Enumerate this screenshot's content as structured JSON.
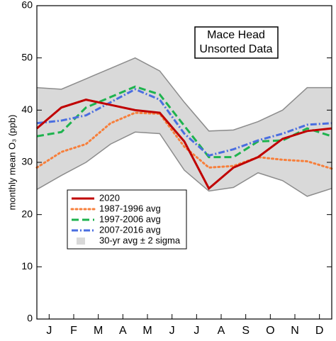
{
  "chart_data": {
    "type": "line",
    "ylabel": "monthly mean O₃ (ppb)",
    "annotation": [
      "Mace Head",
      "Unsorted Data"
    ],
    "x": [
      0,
      1,
      2,
      3,
      4,
      5,
      6,
      7,
      8,
      9,
      10,
      11,
      12
    ],
    "xlim": [
      0,
      12
    ],
    "xticks": [
      {
        "value": 0.5,
        "label": "J"
      },
      {
        "value": 1.5,
        "label": "F"
      },
      {
        "value": 2.5,
        "label": "M"
      },
      {
        "value": 3.5,
        "label": "A"
      },
      {
        "value": 4.5,
        "label": "M"
      },
      {
        "value": 5.5,
        "label": "J"
      },
      {
        "value": 6.5,
        "label": "J"
      },
      {
        "value": 7.5,
        "label": "A"
      },
      {
        "value": 8.5,
        "label": "S"
      },
      {
        "value": 9.5,
        "label": "O"
      },
      {
        "value": 10.5,
        "label": "N"
      },
      {
        "value": 11.5,
        "label": "D"
      }
    ],
    "ylim": [
      0,
      60
    ],
    "yticks": [
      0,
      10,
      20,
      30,
      40,
      50,
      60
    ],
    "band": {
      "name": "30-yr avg ± 2 sigma",
      "color": "#d9d9d9",
      "edge": "#8c8c8c",
      "upper": [
        44.3,
        44,
        46,
        48,
        50,
        47.5,
        41.5,
        36,
        36.2,
        37.8,
        40,
        44.3,
        44.3
      ],
      "lower": [
        24.8,
        27.5,
        30,
        33.5,
        35.8,
        35.5,
        28.5,
        24.5,
        25.2,
        28,
        26.5,
        23.5,
        25
      ]
    },
    "series": [
      {
        "name": "2020",
        "color": "#c00000",
        "dash": "solid",
        "values": [
          36.5,
          40.5,
          42,
          41,
          40,
          39.5,
          34,
          25,
          29,
          31,
          34.5,
          36,
          36.5
        ]
      },
      {
        "name": "1987-1996 avg",
        "color": "#f77f3b",
        "dash": "dot",
        "values": [
          29,
          32,
          33.5,
          37.5,
          39.5,
          39.3,
          33,
          29,
          29.3,
          31,
          30.5,
          30.2,
          28.8
        ]
      },
      {
        "name": "1997-2006 avg",
        "color": "#1eb34e",
        "dash": "dash",
        "values": [
          35,
          35.8,
          40.5,
          42.5,
          44.5,
          43,
          37,
          31,
          31,
          34,
          34.2,
          36.5,
          35
        ]
      },
      {
        "name": "2007-2016 avg",
        "color": "#4a6ee0",
        "dash": "dashdot",
        "values": [
          37.5,
          38,
          39,
          41.5,
          44,
          42,
          35.5,
          31.3,
          32.5,
          34.2,
          35.5,
          37.2,
          37.5
        ]
      }
    ]
  }
}
